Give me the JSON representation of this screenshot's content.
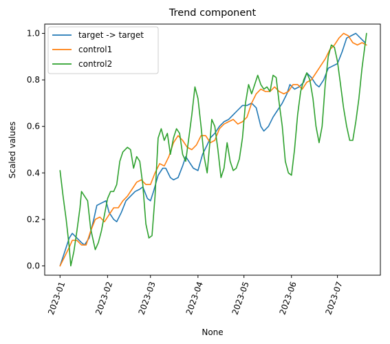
{
  "chart_data": {
    "type": "line",
    "title": "Trend component",
    "xlabel": "None",
    "ylabel": "Scaled values",
    "x_type": "date",
    "xlim": [
      "2022-12-22",
      "2023-07-29"
    ],
    "ylim": [
      -0.04,
      1.04
    ],
    "x_ticks": [
      "2023-01-01",
      "2023-02-01",
      "2023-03-01",
      "2023-04-01",
      "2023-05-01",
      "2023-06-01",
      "2023-07-01"
    ],
    "x_tick_labels": [
      "2023-01",
      "2023-02",
      "2023-03",
      "2023-04",
      "2023-05",
      "2023-06",
      "2023-07"
    ],
    "y_ticks": [
      0.0,
      0.2,
      0.4,
      0.6,
      0.8,
      1.0
    ],
    "y_tick_labels": [
      "0.0",
      "0.2",
      "0.4",
      "0.6",
      "0.8",
      "1.0"
    ],
    "grid": false,
    "legend_position": "upper-left",
    "series": [
      {
        "name": "target -> target",
        "color": "#1f77b4",
        "points": [
          [
            "2023-01-01",
            0.0
          ],
          [
            "2023-01-04",
            0.06
          ],
          [
            "2023-01-07",
            0.12
          ],
          [
            "2023-01-09",
            0.14
          ],
          [
            "2023-01-12",
            0.12
          ],
          [
            "2023-01-15",
            0.1
          ],
          [
            "2023-01-17",
            0.09
          ],
          [
            "2023-01-20",
            0.12
          ],
          [
            "2023-01-23",
            0.2
          ],
          [
            "2023-01-25",
            0.26
          ],
          [
            "2023-01-28",
            0.27
          ],
          [
            "2023-01-31",
            0.28
          ],
          [
            "2023-02-02",
            0.23
          ],
          [
            "2023-02-05",
            0.2
          ],
          [
            "2023-02-07",
            0.19
          ],
          [
            "2023-02-10",
            0.23
          ],
          [
            "2023-02-13",
            0.28
          ],
          [
            "2023-02-16",
            0.3
          ],
          [
            "2023-02-19",
            0.32
          ],
          [
            "2023-02-22",
            0.33
          ],
          [
            "2023-02-24",
            0.34
          ],
          [
            "2023-02-27",
            0.29
          ],
          [
            "2023-03-01",
            0.28
          ],
          [
            "2023-03-03",
            0.32
          ],
          [
            "2023-03-06",
            0.39
          ],
          [
            "2023-03-09",
            0.42
          ],
          [
            "2023-03-11",
            0.42
          ],
          [
            "2023-03-14",
            0.38
          ],
          [
            "2023-03-16",
            0.37
          ],
          [
            "2023-03-19",
            0.38
          ],
          [
            "2023-03-22",
            0.43
          ],
          [
            "2023-03-24",
            0.47
          ],
          [
            "2023-03-27",
            0.44
          ],
          [
            "2023-03-29",
            0.42
          ],
          [
            "2023-04-01",
            0.41
          ],
          [
            "2023-04-04",
            0.48
          ],
          [
            "2023-04-07",
            0.52
          ],
          [
            "2023-04-09",
            0.55
          ],
          [
            "2023-04-12",
            0.57
          ],
          [
            "2023-04-15",
            0.6
          ],
          [
            "2023-04-18",
            0.62
          ],
          [
            "2023-04-21",
            0.63
          ],
          [
            "2023-04-24",
            0.65
          ],
          [
            "2023-04-27",
            0.67
          ],
          [
            "2023-04-30",
            0.69
          ],
          [
            "2023-05-03",
            0.69
          ],
          [
            "2023-05-06",
            0.7
          ],
          [
            "2023-05-09",
            0.68
          ],
          [
            "2023-05-12",
            0.6
          ],
          [
            "2023-05-14",
            0.58
          ],
          [
            "2023-05-17",
            0.6
          ],
          [
            "2023-05-20",
            0.64
          ],
          [
            "2023-05-23",
            0.67
          ],
          [
            "2023-05-26",
            0.7
          ],
          [
            "2023-05-29",
            0.74
          ],
          [
            "2023-05-31",
            0.78
          ],
          [
            "2023-06-03",
            0.76
          ],
          [
            "2023-06-06",
            0.77
          ],
          [
            "2023-06-09",
            0.79
          ],
          [
            "2023-06-11",
            0.83
          ],
          [
            "2023-06-14",
            0.81
          ],
          [
            "2023-06-17",
            0.78
          ],
          [
            "2023-06-19",
            0.77
          ],
          [
            "2023-06-22",
            0.8
          ],
          [
            "2023-06-25",
            0.85
          ],
          [
            "2023-06-28",
            0.86
          ],
          [
            "2023-07-01",
            0.87
          ],
          [
            "2023-07-04",
            0.92
          ],
          [
            "2023-07-07",
            0.98
          ],
          [
            "2023-07-10",
            0.99
          ],
          [
            "2023-07-13",
            1.0
          ],
          [
            "2023-07-16",
            0.98
          ],
          [
            "2023-07-19",
            0.96
          ]
        ]
      },
      {
        "name": "control1",
        "color": "#ff7f0e",
        "points": [
          [
            "2023-01-01",
            0.0
          ],
          [
            "2023-01-04",
            0.04
          ],
          [
            "2023-01-07",
            0.08
          ],
          [
            "2023-01-09",
            0.11
          ],
          [
            "2023-01-12",
            0.11
          ],
          [
            "2023-01-15",
            0.09
          ],
          [
            "2023-01-18",
            0.09
          ],
          [
            "2023-01-21",
            0.15
          ],
          [
            "2023-01-24",
            0.2
          ],
          [
            "2023-01-27",
            0.21
          ],
          [
            "2023-01-30",
            0.19
          ],
          [
            "2023-02-02",
            0.22
          ],
          [
            "2023-02-05",
            0.25
          ],
          [
            "2023-02-08",
            0.25
          ],
          [
            "2023-02-11",
            0.28
          ],
          [
            "2023-02-14",
            0.3
          ],
          [
            "2023-02-17",
            0.33
          ],
          [
            "2023-02-20",
            0.36
          ],
          [
            "2023-02-23",
            0.37
          ],
          [
            "2023-02-26",
            0.35
          ],
          [
            "2023-03-01",
            0.35
          ],
          [
            "2023-03-04",
            0.4
          ],
          [
            "2023-03-07",
            0.44
          ],
          [
            "2023-03-10",
            0.43
          ],
          [
            "2023-03-13",
            0.47
          ],
          [
            "2023-03-16",
            0.53
          ],
          [
            "2023-03-19",
            0.56
          ],
          [
            "2023-03-22",
            0.54
          ],
          [
            "2023-03-25",
            0.51
          ],
          [
            "2023-03-28",
            0.5
          ],
          [
            "2023-03-31",
            0.52
          ],
          [
            "2023-04-03",
            0.56
          ],
          [
            "2023-04-06",
            0.56
          ],
          [
            "2023-04-09",
            0.53
          ],
          [
            "2023-04-12",
            0.54
          ],
          [
            "2023-04-15",
            0.59
          ],
          [
            "2023-04-18",
            0.61
          ],
          [
            "2023-04-21",
            0.62
          ],
          [
            "2023-04-24",
            0.63
          ],
          [
            "2023-04-27",
            0.61
          ],
          [
            "2023-04-30",
            0.62
          ],
          [
            "2023-05-03",
            0.64
          ],
          [
            "2023-05-06",
            0.7
          ],
          [
            "2023-05-09",
            0.74
          ],
          [
            "2023-05-12",
            0.76
          ],
          [
            "2023-05-15",
            0.75
          ],
          [
            "2023-05-18",
            0.75
          ],
          [
            "2023-05-21",
            0.77
          ],
          [
            "2023-05-24",
            0.75
          ],
          [
            "2023-05-27",
            0.74
          ],
          [
            "2023-05-30",
            0.75
          ],
          [
            "2023-06-02",
            0.78
          ],
          [
            "2023-06-05",
            0.78
          ],
          [
            "2023-06-08",
            0.76
          ],
          [
            "2023-06-11",
            0.79
          ],
          [
            "2023-06-14",
            0.8
          ],
          [
            "2023-06-17",
            0.83
          ],
          [
            "2023-06-20",
            0.86
          ],
          [
            "2023-06-23",
            0.89
          ],
          [
            "2023-06-26",
            0.93
          ],
          [
            "2023-06-29",
            0.95
          ],
          [
            "2023-07-02",
            0.98
          ],
          [
            "2023-07-05",
            1.0
          ],
          [
            "2023-07-08",
            0.99
          ],
          [
            "2023-07-11",
            0.96
          ],
          [
            "2023-07-14",
            0.95
          ],
          [
            "2023-07-17",
            0.96
          ],
          [
            "2023-07-20",
            0.95
          ]
        ]
      },
      {
        "name": "control2",
        "color": "#2ca02c",
        "points": [
          [
            "2023-01-01",
            0.41
          ],
          [
            "2023-01-03",
            0.3
          ],
          [
            "2023-01-05",
            0.2
          ],
          [
            "2023-01-07",
            0.08
          ],
          [
            "2023-01-08",
            0.0
          ],
          [
            "2023-01-10",
            0.06
          ],
          [
            "2023-01-12",
            0.15
          ],
          [
            "2023-01-14",
            0.25
          ],
          [
            "2023-01-15",
            0.32
          ],
          [
            "2023-01-17",
            0.3
          ],
          [
            "2023-01-19",
            0.28
          ],
          [
            "2023-01-21",
            0.16
          ],
          [
            "2023-01-24",
            0.07
          ],
          [
            "2023-01-26",
            0.1
          ],
          [
            "2023-01-28",
            0.15
          ],
          [
            "2023-01-30",
            0.22
          ],
          [
            "2023-02-01",
            0.29
          ],
          [
            "2023-02-03",
            0.32
          ],
          [
            "2023-02-05",
            0.32
          ],
          [
            "2023-02-07",
            0.35
          ],
          [
            "2023-02-09",
            0.45
          ],
          [
            "2023-02-11",
            0.49
          ],
          [
            "2023-02-14",
            0.51
          ],
          [
            "2023-02-16",
            0.5
          ],
          [
            "2023-02-18",
            0.42
          ],
          [
            "2023-02-20",
            0.47
          ],
          [
            "2023-02-22",
            0.45
          ],
          [
            "2023-02-24",
            0.35
          ],
          [
            "2023-02-26",
            0.18
          ],
          [
            "2023-02-28",
            0.12
          ],
          [
            "2023-03-02",
            0.13
          ],
          [
            "2023-03-04",
            0.3
          ],
          [
            "2023-03-06",
            0.55
          ],
          [
            "2023-03-08",
            0.59
          ],
          [
            "2023-03-10",
            0.54
          ],
          [
            "2023-03-12",
            0.57
          ],
          [
            "2023-03-14",
            0.48
          ],
          [
            "2023-03-16",
            0.55
          ],
          [
            "2023-03-18",
            0.59
          ],
          [
            "2023-03-20",
            0.57
          ],
          [
            "2023-03-22",
            0.48
          ],
          [
            "2023-03-24",
            0.45
          ],
          [
            "2023-03-26",
            0.55
          ],
          [
            "2023-03-28",
            0.65
          ],
          [
            "2023-03-30",
            0.77
          ],
          [
            "2023-04-01",
            0.72
          ],
          [
            "2023-04-03",
            0.6
          ],
          [
            "2023-04-05",
            0.47
          ],
          [
            "2023-04-07",
            0.4
          ],
          [
            "2023-04-09",
            0.55
          ],
          [
            "2023-04-10",
            0.63
          ],
          [
            "2023-04-12",
            0.6
          ],
          [
            "2023-04-14",
            0.5
          ],
          [
            "2023-04-16",
            0.38
          ],
          [
            "2023-04-18",
            0.42
          ],
          [
            "2023-04-20",
            0.53
          ],
          [
            "2023-04-22",
            0.45
          ],
          [
            "2023-04-24",
            0.41
          ],
          [
            "2023-04-26",
            0.42
          ],
          [
            "2023-04-28",
            0.46
          ],
          [
            "2023-04-30",
            0.55
          ],
          [
            "2023-05-02",
            0.7
          ],
          [
            "2023-05-04",
            0.78
          ],
          [
            "2023-05-06",
            0.74
          ],
          [
            "2023-05-08",
            0.78
          ],
          [
            "2023-05-10",
            0.82
          ],
          [
            "2023-05-12",
            0.78
          ],
          [
            "2023-05-14",
            0.76
          ],
          [
            "2023-05-16",
            0.77
          ],
          [
            "2023-05-18",
            0.75
          ],
          [
            "2023-05-20",
            0.82
          ],
          [
            "2023-05-22",
            0.81
          ],
          [
            "2023-05-24",
            0.7
          ],
          [
            "2023-05-26",
            0.6
          ],
          [
            "2023-05-28",
            0.45
          ],
          [
            "2023-05-30",
            0.4
          ],
          [
            "2023-06-01",
            0.39
          ],
          [
            "2023-06-03",
            0.5
          ],
          [
            "2023-06-05",
            0.65
          ],
          [
            "2023-06-07",
            0.75
          ],
          [
            "2023-06-09",
            0.8
          ],
          [
            "2023-06-11",
            0.83
          ],
          [
            "2023-06-13",
            0.8
          ],
          [
            "2023-06-15",
            0.72
          ],
          [
            "2023-06-17",
            0.6
          ],
          [
            "2023-06-19",
            0.53
          ],
          [
            "2023-06-21",
            0.6
          ],
          [
            "2023-06-23",
            0.78
          ],
          [
            "2023-06-25",
            0.9
          ],
          [
            "2023-06-27",
            0.95
          ],
          [
            "2023-06-29",
            0.94
          ],
          [
            "2023-07-01",
            0.88
          ],
          [
            "2023-07-03",
            0.78
          ],
          [
            "2023-07-05",
            0.68
          ],
          [
            "2023-07-07",
            0.6
          ],
          [
            "2023-07-09",
            0.54
          ],
          [
            "2023-07-11",
            0.54
          ],
          [
            "2023-07-13",
            0.62
          ],
          [
            "2023-07-15",
            0.72
          ],
          [
            "2023-07-17",
            0.85
          ],
          [
            "2023-07-19",
            0.95
          ],
          [
            "2023-07-20",
            1.0
          ]
        ]
      }
    ]
  }
}
